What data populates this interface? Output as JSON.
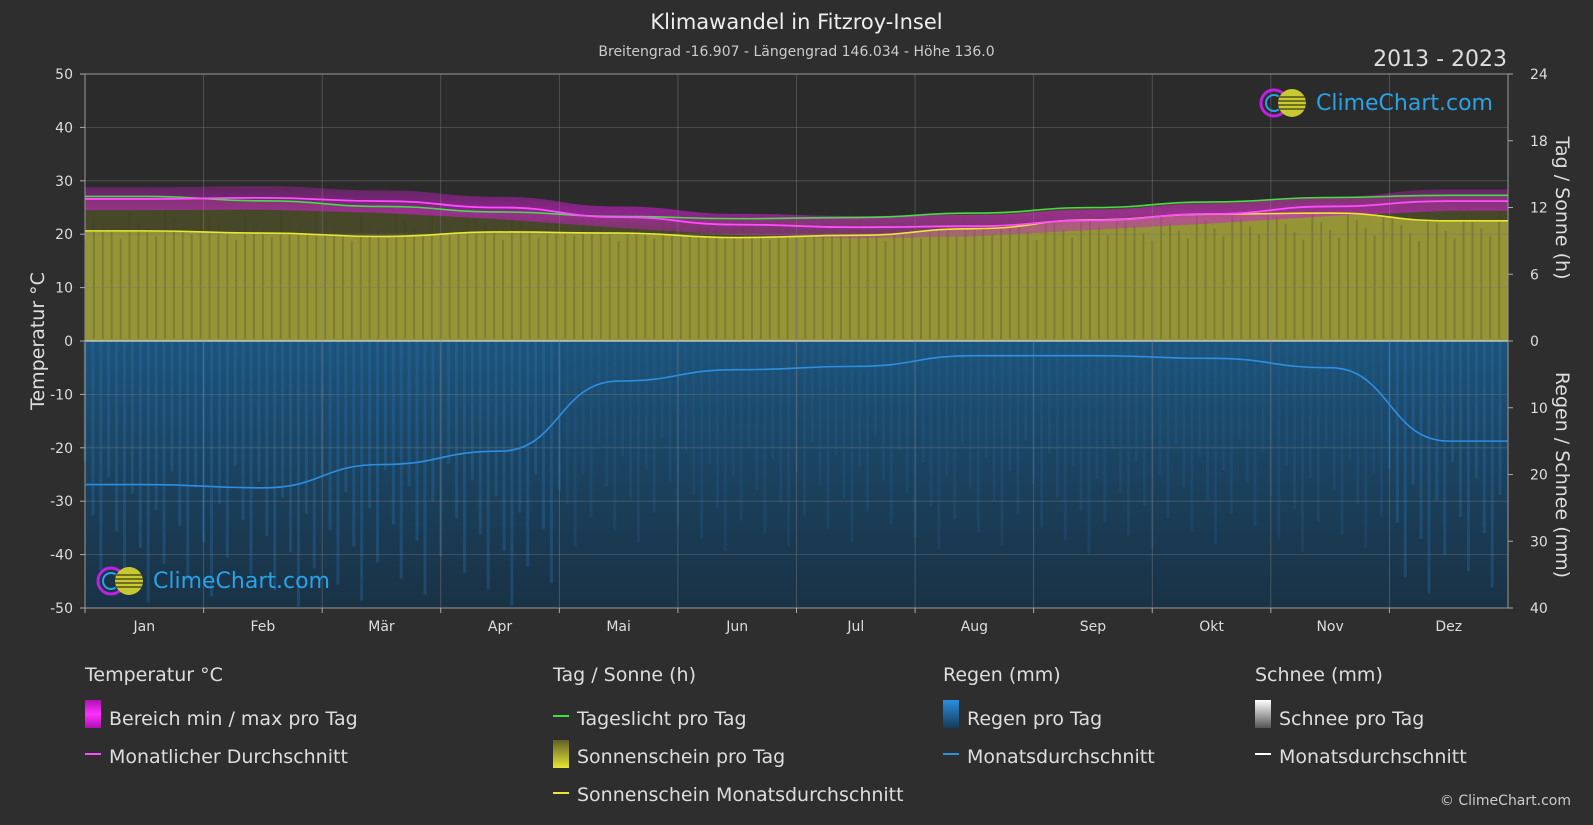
{
  "title": "Klimawandel in Fitzroy-Insel",
  "subtitle": "Breitengrad -16.907 - Längengrad 146.034 - Höhe 136.0",
  "years": "2013 - 2023",
  "brand": "ClimeChart.com",
  "copyright": "© ClimeChart.com",
  "axes": {
    "left_label": "Temperatur °C",
    "right_top_label": "Tag / Sonne (h)",
    "right_bottom_label": "Regen / Schnee (mm)",
    "left_ticks": [
      "50",
      "40",
      "30",
      "20",
      "10",
      "0",
      "-10",
      "-20",
      "-30",
      "-40",
      "-50"
    ],
    "right_top_ticks": [
      "24",
      "18",
      "12",
      "6",
      "0"
    ],
    "right_bottom_ticks": [
      "10",
      "20",
      "30",
      "40"
    ]
  },
  "months": [
    "Jan",
    "Feb",
    "Mär",
    "Apr",
    "Mai",
    "Jun",
    "Jul",
    "Aug",
    "Sep",
    "Okt",
    "Nov",
    "Dez"
  ],
  "legend": {
    "temp": {
      "head": "Temperatur °C",
      "range": "Bereich min / max pro Tag",
      "avg": "Monatlicher Durchschnitt"
    },
    "sun": {
      "head": "Tag / Sonne (h)",
      "daylight": "Tageslicht pro Tag",
      "sunshine": "Sonnenschein pro Tag",
      "sun_avg": "Sonnenschein Monatsdurchschnitt"
    },
    "rain": {
      "head": "Regen (mm)",
      "rain": "Regen pro Tag",
      "avg": "Monatsdurchschnitt"
    },
    "snow": {
      "head": "Schnee (mm)",
      "snow": "Schnee pro Tag",
      "avg": "Monatsdurchschnitt"
    }
  },
  "colors": {
    "temp_avg": "#ff4dff",
    "temp_range": "#d020d0",
    "daylight": "#44dd44",
    "sunshine_fill": "#a9a93a",
    "sunshine_avg": "#e8e830",
    "rain_fill": "#1f5a86",
    "rain_avg": "#2e8fe0",
    "snow": "#ffffff"
  },
  "chart_data": {
    "type": "area",
    "x": [
      "Jan",
      "Feb",
      "Mär",
      "Apr",
      "Mai",
      "Jun",
      "Jul",
      "Aug",
      "Sep",
      "Okt",
      "Nov",
      "Dez"
    ],
    "ylim_temp": [
      -50,
      50
    ],
    "ylim_sun": [
      0,
      24
    ],
    "ylim_rain": [
      0,
      40
    ],
    "series": [
      {
        "name": "Monatlicher Durchschnitt",
        "axis": "temp",
        "values": [
          26.6,
          26.8,
          26.2,
          25.0,
          23.2,
          21.8,
          21.3,
          21.5,
          22.6,
          23.8,
          25.2,
          26.2
        ]
      },
      {
        "name": "Tageslicht pro Tag",
        "axis": "sun",
        "values": [
          13.0,
          12.6,
          12.1,
          11.6,
          11.2,
          11.0,
          11.1,
          11.5,
          12.0,
          12.5,
          12.9,
          13.1
        ]
      },
      {
        "name": "Sonnenschein Monatsdurchschnitt",
        "axis": "sun",
        "values": [
          9.9,
          9.7,
          9.4,
          9.8,
          9.7,
          9.3,
          9.5,
          10.1,
          10.9,
          11.4,
          11.5,
          10.8
        ]
      },
      {
        "name": "Monatsdurchschnitt",
        "axis": "rain",
        "values": [
          21.5,
          22.0,
          18.5,
          16.5,
          6.0,
          4.3,
          3.8,
          2.2,
          2.2,
          2.6,
          4.0,
          15.0
        ]
      }
    ],
    "temp_range_min": [
      24.5,
      24.6,
      24.0,
      22.8,
      21.2,
      19.8,
      19.2,
      19.6,
      20.8,
      22.0,
      23.4,
      24.4
    ],
    "temp_range_max": [
      28.8,
      29.0,
      28.2,
      27.0,
      25.2,
      23.8,
      23.4,
      23.6,
      24.6,
      25.8,
      27.0,
      28.4
    ],
    "grid": true
  }
}
